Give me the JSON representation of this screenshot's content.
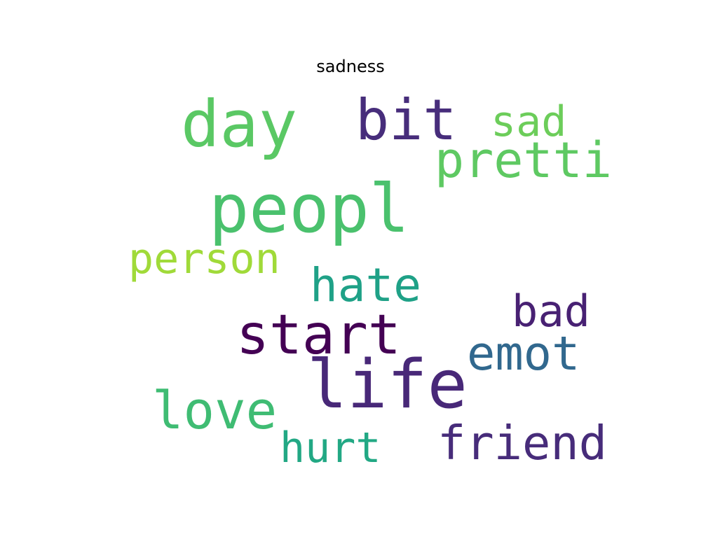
{
  "title": "sadness",
  "words": [
    {
      "id": "day",
      "text": "day",
      "color": "#5ac864"
    },
    {
      "id": "bit",
      "text": "bit",
      "color": "#472d7b"
    },
    {
      "id": "sad",
      "text": "sad",
      "color": "#6ccd5a"
    },
    {
      "id": "pretti",
      "text": "pretti",
      "color": "#5ec962"
    },
    {
      "id": "peopl",
      "text": "peopl",
      "color": "#4ac16d"
    },
    {
      "id": "person",
      "text": "person",
      "color": "#a0da39"
    },
    {
      "id": "hate",
      "text": "hate",
      "color": "#1fa187"
    },
    {
      "id": "bad",
      "text": "bad",
      "color": "#482173"
    },
    {
      "id": "start",
      "text": "start",
      "color": "#440154"
    },
    {
      "id": "emot",
      "text": "emot",
      "color": "#31688e"
    },
    {
      "id": "life",
      "text": "life",
      "color": "#482878"
    },
    {
      "id": "love",
      "text": "love",
      "color": "#3fbc73"
    },
    {
      "id": "hurt",
      "text": "hurt",
      "color": "#22a884"
    },
    {
      "id": "friend",
      "text": "friend",
      "color": "#472c7a"
    }
  ]
}
